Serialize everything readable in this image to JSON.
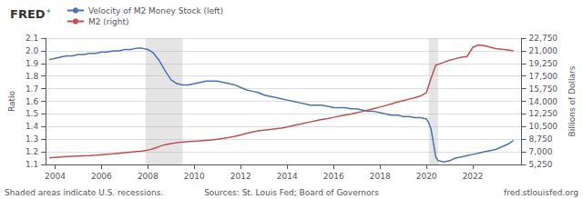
{
  "chart_data": {
    "type": "line",
    "title": "FRED",
    "annotations": [
      "✦",
      "Shaded areas indicate U.S. recessions.",
      "Sources: St. Louis Fed; Board of Governors",
      "fred.stlouisfed.org"
    ],
    "ylabel": "Ratio",
    "y2label": "Billions of Dollars",
    "xlim": [
      2003.6,
      2024.1
    ],
    "xticks": [
      2004,
      2006,
      2008,
      2010,
      2012,
      2014,
      2016,
      2018,
      2020,
      2022
    ],
    "ylim": [
      1.1,
      2.1
    ],
    "yticks": [
      1.1,
      1.2,
      1.3,
      1.4,
      1.5,
      1.6,
      1.7,
      1.8,
      1.9,
      {
        "value": 2.0,
        "label": "2.0"
      },
      2.1
    ],
    "y2lim": [
      5250,
      22750
    ],
    "y2ticks": [
      {
        "value": 5250,
        "label": "5,250"
      },
      {
        "value": 7000,
        "label": "7,000"
      },
      {
        "value": 8750,
        "label": "8,750"
      },
      {
        "value": 10500,
        "label": "10,500"
      },
      {
        "value": 12250,
        "label": "12,250"
      },
      {
        "value": 14000,
        "label": "14,000"
      },
      {
        "value": 15750,
        "label": "15,750"
      },
      {
        "value": 17500,
        "label": "17,500"
      },
      {
        "value": 19250,
        "label": "19,250"
      },
      {
        "value": 21000,
        "label": "21,000"
      },
      {
        "value": 22750,
        "label": "22,750"
      }
    ],
    "grid": true,
    "legend": "top",
    "recession_bands": [
      [
        2007.9,
        2009.5
      ],
      [
        2020.1,
        2020.5
      ]
    ],
    "series": [
      {
        "name": "Velocity of M2 Money Stock (left)",
        "color": "#4C72B0",
        "axis": "y",
        "x": [
          2003.75,
          2004.0,
          2004.25,
          2004.5,
          2004.75,
          2005.0,
          2005.25,
          2005.5,
          2005.75,
          2006.0,
          2006.25,
          2006.5,
          2006.75,
          2007.0,
          2007.25,
          2007.5,
          2007.75,
          2008.0,
          2008.1,
          2008.25,
          2008.5,
          2008.75,
          2009.0,
          2009.25,
          2009.5,
          2009.75,
          2010.0,
          2010.25,
          2010.5,
          2010.75,
          2011.0,
          2011.25,
          2011.5,
          2011.75,
          2012.0,
          2012.25,
          2012.5,
          2012.75,
          2013.0,
          2013.25,
          2013.5,
          2013.75,
          2014.0,
          2014.25,
          2014.5,
          2014.75,
          2015.0,
          2015.25,
          2015.5,
          2015.75,
          2016.0,
          2016.25,
          2016.5,
          2016.75,
          2017.0,
          2017.25,
          2017.5,
          2017.75,
          2018.0,
          2018.25,
          2018.5,
          2018.75,
          2019.0,
          2019.25,
          2019.5,
          2019.75,
          2020.0,
          2020.1,
          2020.2,
          2020.3,
          2020.4,
          2020.5,
          2020.75,
          2021.0,
          2021.25,
          2021.5,
          2021.75,
          2022.0,
          2022.25,
          2022.5,
          2022.75,
          2023.0,
          2023.25,
          2023.5,
          2023.75
        ],
        "values": [
          1.93,
          1.94,
          1.95,
          1.96,
          1.96,
          1.97,
          1.97,
          1.98,
          1.98,
          1.99,
          1.99,
          2.0,
          2.0,
          2.01,
          2.01,
          2.02,
          2.02,
          2.01,
          2.0,
          1.98,
          1.92,
          1.84,
          1.77,
          1.74,
          1.73,
          1.73,
          1.74,
          1.75,
          1.76,
          1.76,
          1.76,
          1.75,
          1.74,
          1.73,
          1.71,
          1.69,
          1.68,
          1.67,
          1.65,
          1.64,
          1.63,
          1.62,
          1.61,
          1.6,
          1.59,
          1.58,
          1.57,
          1.57,
          1.57,
          1.56,
          1.55,
          1.55,
          1.55,
          1.54,
          1.54,
          1.53,
          1.52,
          1.52,
          1.51,
          1.5,
          1.49,
          1.49,
          1.48,
          1.48,
          1.47,
          1.47,
          1.46,
          1.43,
          1.38,
          1.27,
          1.16,
          1.13,
          1.12,
          1.13,
          1.15,
          1.16,
          1.17,
          1.18,
          1.19,
          1.2,
          1.21,
          1.22,
          1.24,
          1.26,
          1.29
        ]
      },
      {
        "name": "M2 (right)",
        "color": "#C0504D",
        "axis": "y2",
        "x": [
          2003.75,
          2004.0,
          2004.25,
          2004.5,
          2004.75,
          2005.0,
          2005.25,
          2005.5,
          2005.75,
          2006.0,
          2006.25,
          2006.5,
          2006.75,
          2007.0,
          2007.25,
          2007.5,
          2007.75,
          2008.0,
          2008.25,
          2008.5,
          2008.75,
          2009.0,
          2009.25,
          2009.5,
          2009.75,
          2010.0,
          2010.25,
          2010.5,
          2010.75,
          2011.0,
          2011.25,
          2011.5,
          2011.75,
          2012.0,
          2012.25,
          2012.5,
          2012.75,
          2013.0,
          2013.25,
          2013.5,
          2013.75,
          2014.0,
          2014.25,
          2014.5,
          2014.75,
          2015.0,
          2015.25,
          2015.5,
          2015.75,
          2016.0,
          2016.25,
          2016.5,
          2016.75,
          2017.0,
          2017.25,
          2017.5,
          2017.75,
          2018.0,
          2018.25,
          2018.5,
          2018.75,
          2019.0,
          2019.25,
          2019.5,
          2019.75,
          2020.0,
          2020.2,
          2020.4,
          2020.75,
          2021.0,
          2021.25,
          2021.5,
          2021.75,
          2022.0,
          2022.25,
          2022.5,
          2022.75,
          2023.0,
          2023.25,
          2023.5,
          2023.75
        ],
        "values": [
          6150,
          6220,
          6280,
          6340,
          6390,
          6430,
          6460,
          6490,
          6540,
          6600,
          6660,
          6720,
          6800,
          6880,
          6960,
          7040,
          7120,
          7220,
          7450,
          7750,
          8000,
          8150,
          8280,
          8380,
          8430,
          8470,
          8510,
          8580,
          8650,
          8750,
          8870,
          9000,
          9150,
          9350,
          9550,
          9750,
          9900,
          10000,
          10100,
          10200,
          10300,
          10450,
          10620,
          10800,
          10980,
          11150,
          11320,
          11480,
          11620,
          11780,
          11950,
          12100,
          12250,
          12420,
          12600,
          12800,
          13000,
          13200,
          13420,
          13650,
          13900,
          14100,
          14300,
          14500,
          14750,
          15200,
          17200,
          19000,
          19400,
          19700,
          19900,
          20100,
          20200,
          21500,
          21800,
          21700,
          21500,
          21300,
          21200,
          21100,
          21000
        ]
      }
    ]
  }
}
